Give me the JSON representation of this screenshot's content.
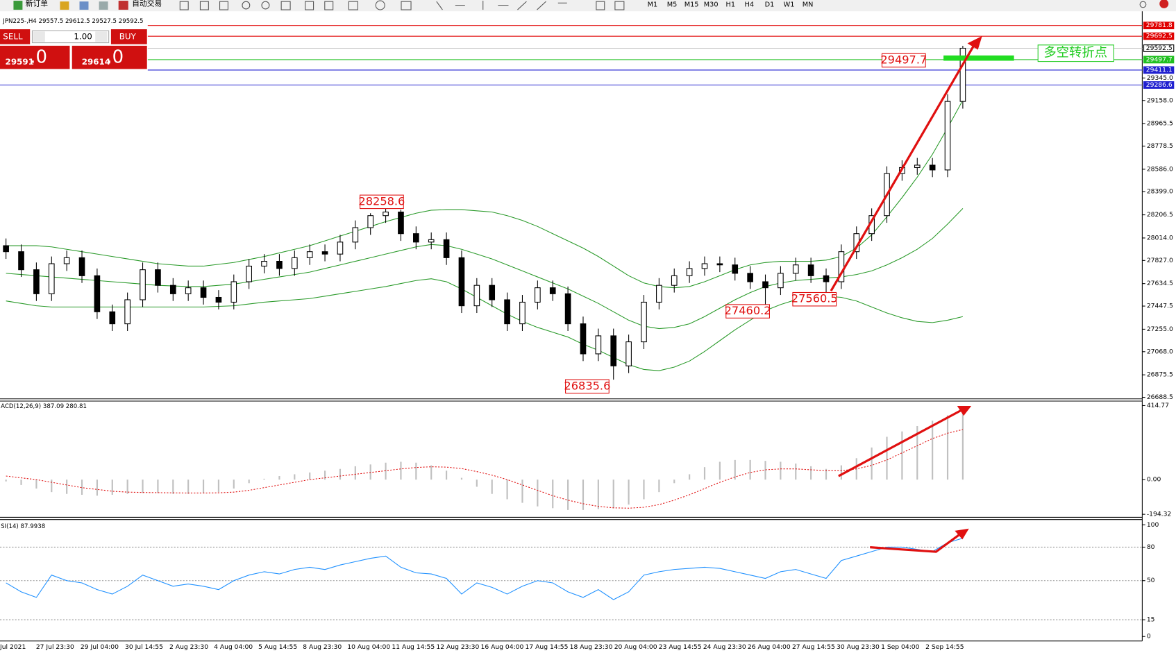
{
  "toolbar": {
    "new_order": "新订单",
    "auto_trade": "自动交易",
    "timeframes": [
      "M1",
      "M5",
      "M15",
      "M30",
      "H1",
      "H4",
      "D1",
      "W1",
      "MN"
    ]
  },
  "trade_panel": {
    "sell": "SELL",
    "buy": "BUY",
    "volume": "1.00",
    "bid_main": "29591",
    "bid_frac": ".0",
    "ask_main": "29614",
    "ask_frac": ".0"
  },
  "chart_data": [
    {
      "type": "candlestick",
      "title": "JPN225-,H4  29557.5 29612.5 29527.5 29592.5",
      "open": [
        27950,
        27900,
        27750,
        27550,
        27800,
        27850,
        27700,
        27400,
        27300,
        27500,
        27750,
        27620,
        27550,
        27600,
        27520,
        27480,
        27650,
        27780,
        27820,
        27760,
        27850,
        27900,
        27880,
        27980,
        28100,
        28200,
        28230,
        28050,
        27980,
        28000,
        27850,
        27450,
        27620,
        27500,
        27300,
        27480,
        27600,
        27550,
        27300,
        27050,
        27200,
        26950,
        27150,
        27480,
        27620,
        27700,
        27760,
        27800,
        27790,
        27720,
        27650,
        27600,
        27720,
        27790,
        27700,
        27650,
        27900,
        28050,
        28200,
        28550,
        28600,
        28620,
        28580,
        29150
      ],
      "high": [
        28010,
        27960,
        27810,
        27860,
        27910,
        27910,
        27760,
        27460,
        27560,
        27810,
        27810,
        27680,
        27660,
        27660,
        27580,
        27710,
        27840,
        27880,
        27880,
        27910,
        27960,
        27960,
        28040,
        28160,
        28220,
        28258.6,
        28250,
        28110,
        28060,
        28060,
        27910,
        27680,
        27680,
        27560,
        27540,
        27660,
        27660,
        27610,
        27360,
        27260,
        27260,
        27210,
        27540,
        27680,
        27760,
        27820,
        27860,
        27860,
        27850,
        27780,
        27710,
        27780,
        27850,
        27850,
        27760,
        27960,
        28110,
        28260,
        28610,
        28660,
        28680,
        28680,
        29210,
        29612.5
      ],
      "low": [
        27840,
        27690,
        27490,
        27490,
        27740,
        27640,
        27340,
        27240,
        27240,
        27440,
        27560,
        27490,
        27490,
        27460,
        27420,
        27420,
        27590,
        27720,
        27700,
        27700,
        27790,
        27820,
        27820,
        27920,
        28040,
        28140,
        27990,
        27920,
        27920,
        27790,
        27390,
        27390,
        27440,
        27240,
        27240,
        27420,
        27490,
        27240,
        26990,
        26990,
        26835.6,
        26890,
        27090,
        27420,
        27560,
        27640,
        27700,
        27730,
        27660,
        27590,
        27460.2,
        27540,
        27660,
        27640,
        27560.5,
        27590,
        27840,
        27990,
        28140,
        28490,
        28540,
        28520,
        28520,
        29090
      ],
      "close": [
        27900,
        27750,
        27550,
        27800,
        27850,
        27700,
        27400,
        27300,
        27500,
        27750,
        27620,
        27550,
        27600,
        27520,
        27480,
        27650,
        27780,
        27820,
        27760,
        27850,
        27900,
        27880,
        27980,
        28100,
        28200,
        28230,
        28050,
        27980,
        28000,
        27850,
        27450,
        27620,
        27500,
        27300,
        27480,
        27600,
        27550,
        27300,
        27050,
        27200,
        26950,
        27150,
        27480,
        27620,
        27700,
        27760,
        27800,
        27790,
        27720,
        27650,
        27600,
        27720,
        27790,
        27700,
        27650,
        27900,
        28050,
        28200,
        28550,
        28600,
        28620,
        28580,
        29150,
        29592.5
      ],
      "bollinger_upper": [
        27950,
        27950,
        27950,
        27940,
        27920,
        27900,
        27880,
        27860,
        27840,
        27820,
        27800,
        27790,
        27780,
        27780,
        27795,
        27810,
        27835,
        27860,
        27890,
        27920,
        27950,
        27990,
        28030,
        28070,
        28110,
        28150,
        28185,
        28220,
        28245,
        28250,
        28250,
        28240,
        28230,
        28200,
        28160,
        28110,
        28050,
        27990,
        27930,
        27860,
        27780,
        27700,
        27640,
        27610,
        27600,
        27610,
        27650,
        27700,
        27750,
        27790,
        27810,
        27820,
        27820,
        27820,
        27830,
        27860,
        27930,
        28040,
        28190,
        28350,
        28520,
        28710,
        28930,
        29160
      ],
      "bollinger_mid": [
        27720,
        27710,
        27700,
        27690,
        27680,
        27670,
        27660,
        27650,
        27640,
        27630,
        27620,
        27615,
        27610,
        27610,
        27620,
        27630,
        27650,
        27670,
        27690,
        27710,
        27730,
        27760,
        27790,
        27820,
        27850,
        27880,
        27910,
        27940,
        27960,
        27950,
        27920,
        27880,
        27840,
        27790,
        27740,
        27690,
        27640,
        27590,
        27530,
        27470,
        27400,
        27330,
        27280,
        27260,
        27270,
        27300,
        27360,
        27430,
        27500,
        27560,
        27610,
        27640,
        27660,
        27670,
        27680,
        27690,
        27710,
        27740,
        27790,
        27850,
        27920,
        28010,
        28130,
        28260
      ],
      "bollinger_lower": [
        27490,
        27470,
        27450,
        27440,
        27440,
        27440,
        27440,
        27440,
        27440,
        27440,
        27440,
        27440,
        27440,
        27440,
        27445,
        27450,
        27465,
        27480,
        27490,
        27500,
        27510,
        27530,
        27550,
        27570,
        27590,
        27610,
        27635,
        27660,
        27675,
        27650,
        27590,
        27520,
        27450,
        27380,
        27320,
        27270,
        27230,
        27190,
        27130,
        27080,
        27020,
        26960,
        26920,
        26910,
        26940,
        26990,
        27070,
        27160,
        27250,
        27330,
        27410,
        27460,
        27500,
        27520,
        27530,
        27520,
        27490,
        27440,
        27390,
        27350,
        27320,
        27310,
        27330,
        27360
      ],
      "ylim": [
        26682,
        29869
      ],
      "yticks": [
        26688.5,
        26875.5,
        {
          "value": 27068,
          "label": "27068.0"
        },
        {
          "value": 27255,
          "label": "27255.0"
        },
        27447.5,
        27634.5,
        {
          "value": 27827,
          "label": "27827.0"
        },
        {
          "value": 28014,
          "label": "28014.0"
        },
        28206.5,
        {
          "value": 28399,
          "label": "28399.0"
        },
        {
          "value": 28586,
          "label": "28586.0"
        },
        28778.5,
        28965.5,
        {
          "value": 29158,
          "label": "29158.0"
        },
        {
          "value": 29345,
          "label": "29345.0"
        }
      ],
      "levels": [
        {
          "value": 29781.8,
          "color": "#e00000"
        },
        {
          "value": 29692.5,
          "color": "#e00000"
        },
        {
          "value": 29592.5,
          "color": "#c0c0c0"
        },
        {
          "value": 29497.7,
          "color": "#20c020"
        },
        {
          "value": 29411.1,
          "color": "#2020d0"
        },
        {
          "value": 29286.6,
          "color": "#2020d0"
        }
      ],
      "annotations": [
        28258.6,
        26835.6,
        27460.2,
        27560.5,
        29497.7
      ],
      "turning_point": "多空转折点",
      "x_labels": [
        "Jul 2021",
        "27 Jul 23:30",
        "29 Jul 04:00",
        "30 Jul 14:55",
        "2 Aug 23:30",
        "4 Aug 04:00",
        "5 Aug 14:55",
        "8 Aug 23:30",
        "10 Aug 04:00",
        "11 Aug 14:55",
        "12 Aug 23:30",
        "16 Aug 04:00",
        "17 Aug 14:55",
        "18 Aug 23:30",
        "20 Aug 04:00",
        "23 Aug 14:55",
        "24 Aug 23:30",
        "26 Aug 04:00",
        "27 Aug 14:55",
        "30 Aug 23:30",
        "1 Sep 04:00",
        "2 Sep 14:55"
      ]
    },
    {
      "type": "macd",
      "title": "ACD(12,26,9) 387.09 280.81",
      "histogram": [
        -10,
        -30,
        -50,
        -70,
        -80,
        -85,
        -90,
        -85,
        -80,
        -75,
        -75,
        -80,
        -80,
        -75,
        -70,
        -50,
        -20,
        5,
        20,
        30,
        40,
        50,
        60,
        75,
        85,
        95,
        100,
        95,
        80,
        50,
        10,
        -40,
        -80,
        -110,
        -130,
        -150,
        -160,
        -170,
        -170,
        -165,
        -160,
        -140,
        -110,
        -70,
        -20,
        30,
        70,
        100,
        110,
        110,
        105,
        100,
        90,
        75,
        60,
        80,
        120,
        180,
        240,
        270,
        300,
        330,
        360,
        387.09
      ],
      "signal": [
        20,
        10,
        0,
        -15,
        -30,
        -45,
        -55,
        -65,
        -70,
        -72,
        -73,
        -74,
        -75,
        -75,
        -74,
        -70,
        -60,
        -45,
        -30,
        -15,
        0,
        10,
        20,
        30,
        40,
        50,
        60,
        68,
        72,
        70,
        62,
        45,
        25,
        0,
        -30,
        -60,
        -90,
        -115,
        -135,
        -150,
        -158,
        -160,
        -155,
        -140,
        -115,
        -85,
        -50,
        -15,
        15,
        40,
        55,
        60,
        60,
        55,
        50,
        50,
        60,
        80,
        110,
        150,
        190,
        230,
        260,
        280.81
      ],
      "ylim": [
        -194.32,
        414.77
      ],
      "yticks": [
        414.77,
        {
          "value": 0,
          "label": "0.00"
        },
        -194.32
      ]
    },
    {
      "type": "line",
      "title": "SI(14) 87.9938",
      "values": [
        48,
        40,
        35,
        55,
        50,
        48,
        42,
        38,
        45,
        55,
        50,
        45,
        47,
        45,
        42,
        50,
        55,
        58,
        56,
        60,
        62,
        60,
        64,
        67,
        70,
        72,
        62,
        57,
        56,
        52,
        38,
        48,
        44,
        38,
        45,
        50,
        48,
        40,
        35,
        42,
        33,
        40,
        55,
        58,
        60,
        61,
        62,
        61,
        58,
        55,
        52,
        58,
        60,
        56,
        52,
        68,
        72,
        76,
        80,
        80,
        78,
        76,
        84,
        87.9938
      ],
      "color": "#1e90ff",
      "ylim": [
        0,
        100
      ],
      "yticks": [
        0,
        15,
        50,
        80,
        100
      ]
    }
  ]
}
